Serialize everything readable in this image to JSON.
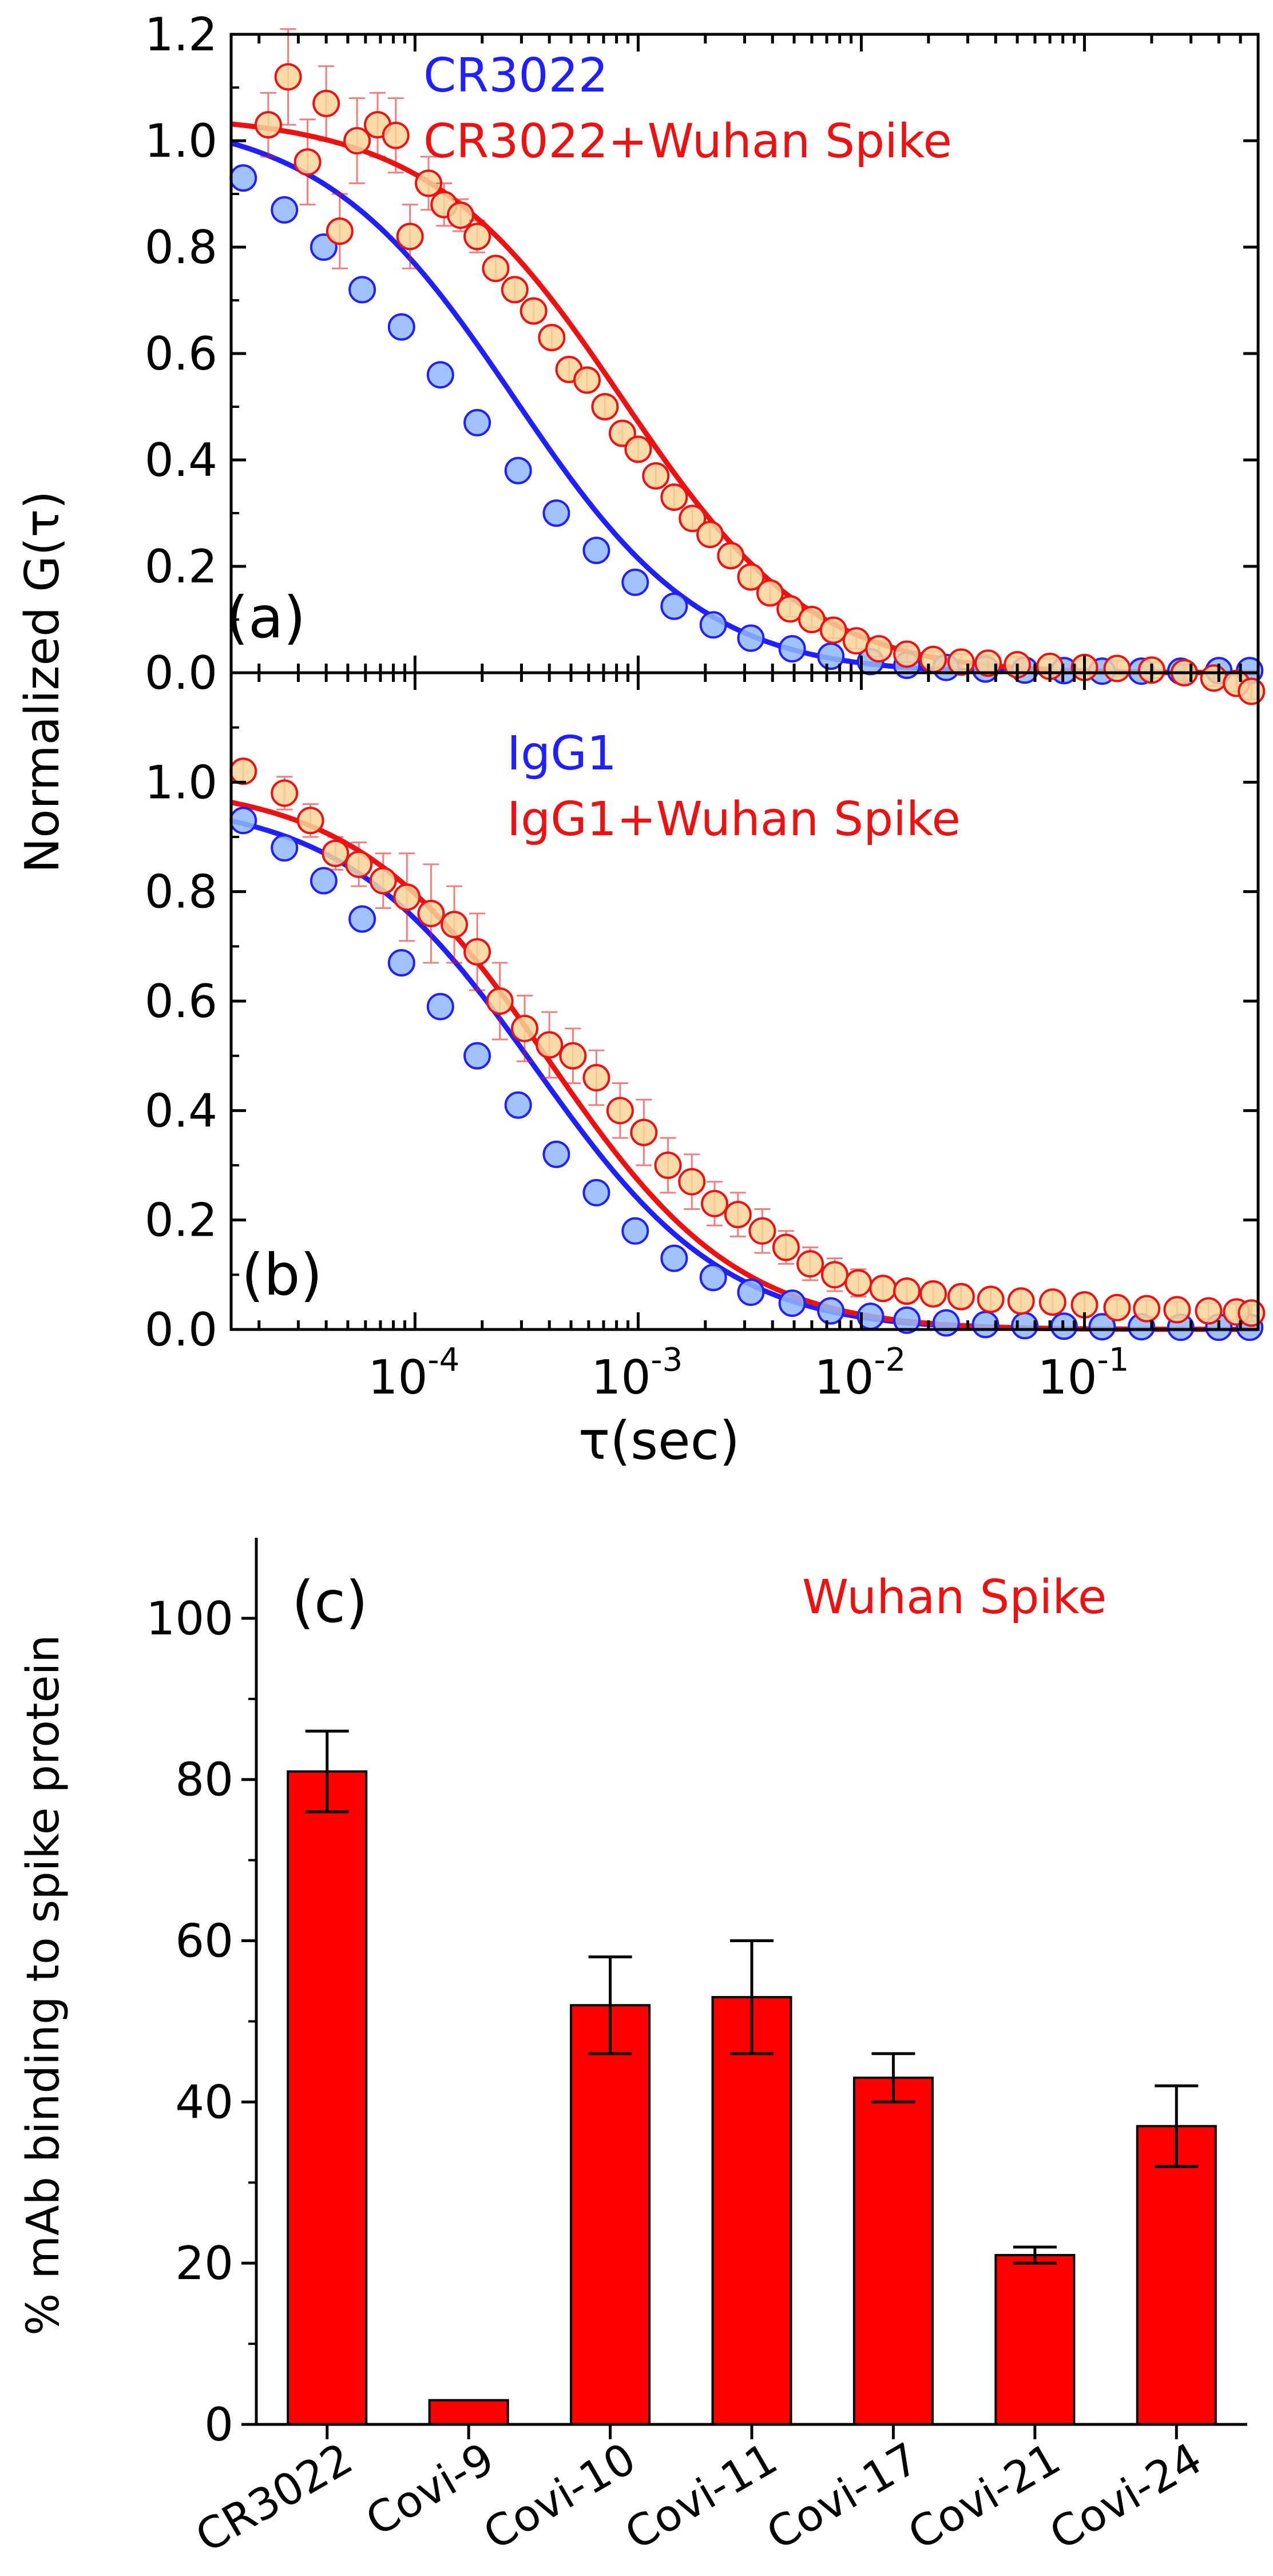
{
  "chart_data": [
    {
      "panel": "(a)",
      "type": "scatter",
      "x_scale": "log",
      "xlim": [
        1.5e-05,
        0.6
      ],
      "ylim": [
        0.0,
        1.2
      ],
      "ylabel": "Normalized G(τ)",
      "xlabel": "",
      "y_ticks": [
        "0.0",
        "0.2",
        "0.4",
        "0.6",
        "0.8",
        "1.0",
        "1.2"
      ],
      "x_ticks": [],
      "series": [
        {
          "name": "CR3022",
          "color": "#1f1fff",
          "fill": "#8fb8ff",
          "fit": {
            "amplitude": 1.05,
            "tau_d": 0.00028,
            "kappa": 5
          },
          "x": [
            1.7e-05,
            2.6e-05,
            3.9e-05,
            5.8e-05,
            8.7e-05,
            0.00013,
            0.00019,
            0.00029,
            0.00043,
            0.00065,
            0.00097,
            0.00145,
            0.00217,
            0.0032,
            0.0049,
            0.0073,
            0.011,
            0.016,
            0.024,
            0.036,
            0.054,
            0.081,
            0.12,
            0.18,
            0.27,
            0.4,
            0.55
          ],
          "y": [
            0.93,
            0.87,
            0.8,
            0.72,
            0.65,
            0.56,
            0.47,
            0.38,
            0.3,
            0.23,
            0.17,
            0.125,
            0.09,
            0.065,
            0.045,
            0.031,
            0.021,
            0.014,
            0.01,
            0.007,
            0.005,
            0.004,
            0.003,
            0.003,
            0.003,
            0.004,
            0.004
          ],
          "err": []
        },
        {
          "name": "CR3022+Wuhan Spike",
          "color": "#ee1111",
          "fill": "#f8d49a",
          "fit": {
            "amplitude": 1.05,
            "tau_d": 0.00085,
            "kappa": 5
          },
          "x": [
            2.2e-05,
            2.7e-05,
            3.3e-05,
            4e-05,
            4.6e-05,
            5.5e-05,
            6.8e-05,
            8.2e-05,
            9.5e-05,
            0.000115,
            0.000135,
            0.00016,
            0.00019,
            0.00023,
            0.00028,
            0.00034,
            0.00041,
            0.00049,
            0.00059,
            0.00071,
            0.00085,
            0.001,
            0.0012,
            0.00145,
            0.00175,
            0.0021,
            0.0026,
            0.0032,
            0.0039,
            0.0048,
            0.006,
            0.0075,
            0.0095,
            0.012,
            0.016,
            0.021,
            0.028,
            0.037,
            0.05,
            0.07,
            0.1,
            0.14,
            0.2,
            0.28,
            0.38,
            0.48,
            0.56
          ],
          "y": [
            1.03,
            1.12,
            0.96,
            1.07,
            0.83,
            1.0,
            1.03,
            1.01,
            0.82,
            0.92,
            0.88,
            0.86,
            0.82,
            0.76,
            0.72,
            0.68,
            0.63,
            0.57,
            0.55,
            0.5,
            0.45,
            0.42,
            0.37,
            0.33,
            0.29,
            0.26,
            0.22,
            0.18,
            0.15,
            0.12,
            0.1,
            0.08,
            0.06,
            0.045,
            0.035,
            0.025,
            0.02,
            0.018,
            0.015,
            0.012,
            0.01,
            0.008,
            0.005,
            0.0,
            -0.01,
            -0.02,
            -0.035
          ],
          "err": [
            0.06,
            0.09,
            0.08,
            0.07,
            0.07,
            0.08,
            0.06,
            0.07,
            0.06,
            0.05,
            0.04,
            0.03,
            0.03,
            0.02,
            0.02,
            0.02,
            0.02,
            0.02,
            0.02,
            0.02,
            0.02,
            0.02,
            0.02,
            0.02,
            0.02,
            0.02,
            0.02,
            0.02,
            0.02,
            0.015,
            0.015,
            0.015,
            0.015,
            0.015,
            0.015,
            0.015,
            0.015,
            0.015,
            0.015,
            0.015,
            0.015,
            0.015,
            0.015,
            0.015,
            0.015,
            0.015,
            0.015
          ]
        }
      ]
    },
    {
      "panel": "(b)",
      "type": "scatter",
      "x_scale": "log",
      "xlim": [
        1.5e-05,
        0.6
      ],
      "ylim": [
        0.0,
        1.2
      ],
      "ylabel": "Normalized G(τ)",
      "xlabel": "τ(sec)",
      "y_ticks": [
        "0.0",
        "0.2",
        "0.4",
        "0.6",
        "0.8",
        "1.0"
      ],
      "x_ticks": [
        {
          "base": "10",
          "exp": "-4",
          "value": 0.0001
        },
        {
          "base": "10",
          "exp": "-3",
          "value": 0.001
        },
        {
          "base": "10",
          "exp": "-2",
          "value": 0.01
        },
        {
          "base": "10",
          "exp": "-1",
          "value": 0.1
        }
      ],
      "series": [
        {
          "name": "IgG1",
          "color": "#1f1fff",
          "fill": "#8fb8ff",
          "fit": {
            "amplitude": 0.97,
            "tau_d": 0.00035,
            "kappa": 5
          },
          "x": [
            1.7e-05,
            2.6e-05,
            3.9e-05,
            5.8e-05,
            8.7e-05,
            0.00013,
            0.00019,
            0.00029,
            0.00043,
            0.00065,
            0.00097,
            0.00145,
            0.00217,
            0.0032,
            0.0049,
            0.0073,
            0.011,
            0.016,
            0.024,
            0.036,
            0.054,
            0.081,
            0.12,
            0.18,
            0.27,
            0.4,
            0.55
          ],
          "y": [
            0.93,
            0.88,
            0.82,
            0.75,
            0.67,
            0.59,
            0.5,
            0.41,
            0.32,
            0.25,
            0.18,
            0.13,
            0.095,
            0.068,
            0.048,
            0.034,
            0.024,
            0.017,
            0.012,
            0.009,
            0.007,
            0.006,
            0.005,
            0.005,
            0.004,
            0.004,
            0.004
          ],
          "err": []
        },
        {
          "name": "IgG1+Wuhan Spike",
          "color": "#ee1111",
          "fill": "#f8d49a",
          "fit": {
            "amplitude": 1.0,
            "tau_d": 0.0004,
            "kappa": 5
          },
          "x": [
            1.7e-05,
            2.6e-05,
            3.4e-05,
            4.4e-05,
            5.6e-05,
            7.2e-05,
            9.2e-05,
            0.000118,
            0.00015,
            0.00019,
            0.00024,
            0.00031,
            0.0004,
            0.00051,
            0.00065,
            0.00083,
            0.00106,
            0.00136,
            0.00174,
            0.0022,
            0.0028,
            0.0036,
            0.0046,
            0.0059,
            0.0076,
            0.0097,
            0.0125,
            0.016,
            0.021,
            0.028,
            0.038,
            0.052,
            0.072,
            0.1,
            0.14,
            0.19,
            0.26,
            0.36,
            0.48,
            0.56
          ],
          "y": [
            1.02,
            0.98,
            0.93,
            0.87,
            0.85,
            0.82,
            0.79,
            0.76,
            0.74,
            0.69,
            0.6,
            0.55,
            0.52,
            0.5,
            0.46,
            0.4,
            0.36,
            0.3,
            0.27,
            0.23,
            0.21,
            0.18,
            0.15,
            0.12,
            0.1,
            0.085,
            0.075,
            0.07,
            0.065,
            0.06,
            0.055,
            0.052,
            0.05,
            0.045,
            0.04,
            0.038,
            0.036,
            0.034,
            0.032,
            0.03
          ],
          "err": [
            0.02,
            0.03,
            0.03,
            0.03,
            0.04,
            0.05,
            0.08,
            0.09,
            0.07,
            0.07,
            0.07,
            0.06,
            0.06,
            0.05,
            0.05,
            0.05,
            0.06,
            0.05,
            0.05,
            0.04,
            0.04,
            0.04,
            0.03,
            0.03,
            0.03,
            0.025,
            0.02,
            0.02,
            0.02,
            0.02,
            0.02,
            0.02,
            0.02,
            0.02,
            0.015,
            0.015,
            0.015,
            0.015,
            0.015,
            0.015
          ]
        }
      ]
    },
    {
      "panel": "(c)",
      "type": "bar",
      "title": "Wuhan Spike",
      "ylabel": "% mAb binding to spike protein",
      "xlabel": "",
      "ylim": [
        0,
        110
      ],
      "y_ticks": [
        "0",
        "20",
        "40",
        "60",
        "80",
        "100"
      ],
      "categories": [
        "CR3022",
        "Covi-9",
        "Covi-10",
        "Covi-11",
        "Covi-17",
        "Covi-21",
        "Covi-24"
      ],
      "values": [
        81,
        3,
        52,
        53,
        43,
        21,
        37
      ],
      "errors": [
        5,
        0,
        6,
        7,
        3,
        1,
        5
      ],
      "color": "#ff0000"
    }
  ]
}
